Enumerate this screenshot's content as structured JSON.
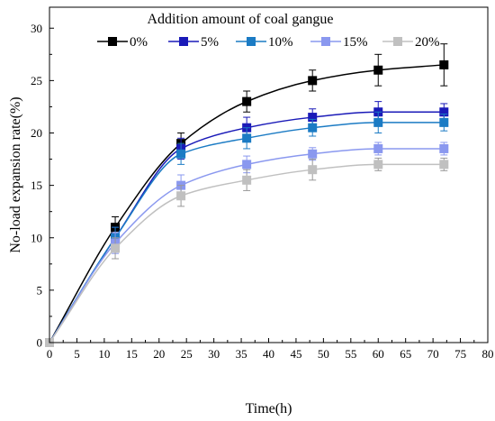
{
  "chart_data": {
    "type": "line",
    "title": "",
    "xlabel": "Time(h)",
    "ylabel": "No-load expansion rate(%)",
    "xlim": [
      0,
      80
    ],
    "ylim": [
      0,
      32
    ],
    "xticks": [
      0,
      5,
      10,
      15,
      20,
      25,
      30,
      35,
      40,
      45,
      50,
      55,
      60,
      65,
      70,
      75,
      80
    ],
    "yticks": [
      0,
      5,
      10,
      15,
      20,
      25,
      30
    ],
    "grid": false,
    "legend": {
      "title": "Addition amount of coal gangue",
      "placement": "top"
    },
    "x": [
      0,
      12,
      24,
      36,
      48,
      60,
      72
    ],
    "series": [
      {
        "name": "0%",
        "color": "#000000",
        "values": [
          0,
          11.0,
          19.0,
          23.0,
          25.0,
          26.0,
          26.5
        ],
        "errors": [
          0,
          1.0,
          1.0,
          1.0,
          1.0,
          1.5,
          2.0
        ]
      },
      {
        "name": "5%",
        "color": "#1a1ab8",
        "values": [
          0,
          10.0,
          18.5,
          20.5,
          21.5,
          22.0,
          22.0
        ],
        "errors": [
          0,
          1.0,
          1.0,
          1.0,
          0.8,
          1.0,
          0.8
        ]
      },
      {
        "name": "10%",
        "color": "#1b7bc4",
        "values": [
          0,
          10.0,
          18.0,
          19.5,
          20.5,
          21.0,
          21.0
        ],
        "errors": [
          0,
          1.0,
          1.0,
          1.0,
          0.8,
          1.0,
          0.8
        ]
      },
      {
        "name": "15%",
        "color": "#8a98ef",
        "values": [
          0,
          9.5,
          15.0,
          17.0,
          18.0,
          18.5,
          18.5
        ],
        "errors": [
          0,
          1.0,
          1.0,
          0.8,
          0.6,
          0.6,
          0.6
        ]
      },
      {
        "name": "20%",
        "color": "#c0c0c0",
        "values": [
          0,
          9.0,
          14.0,
          15.5,
          16.5,
          17.0,
          17.0
        ],
        "errors": [
          0,
          1.0,
          1.0,
          1.0,
          1.0,
          0.6,
          0.6
        ]
      }
    ]
  }
}
